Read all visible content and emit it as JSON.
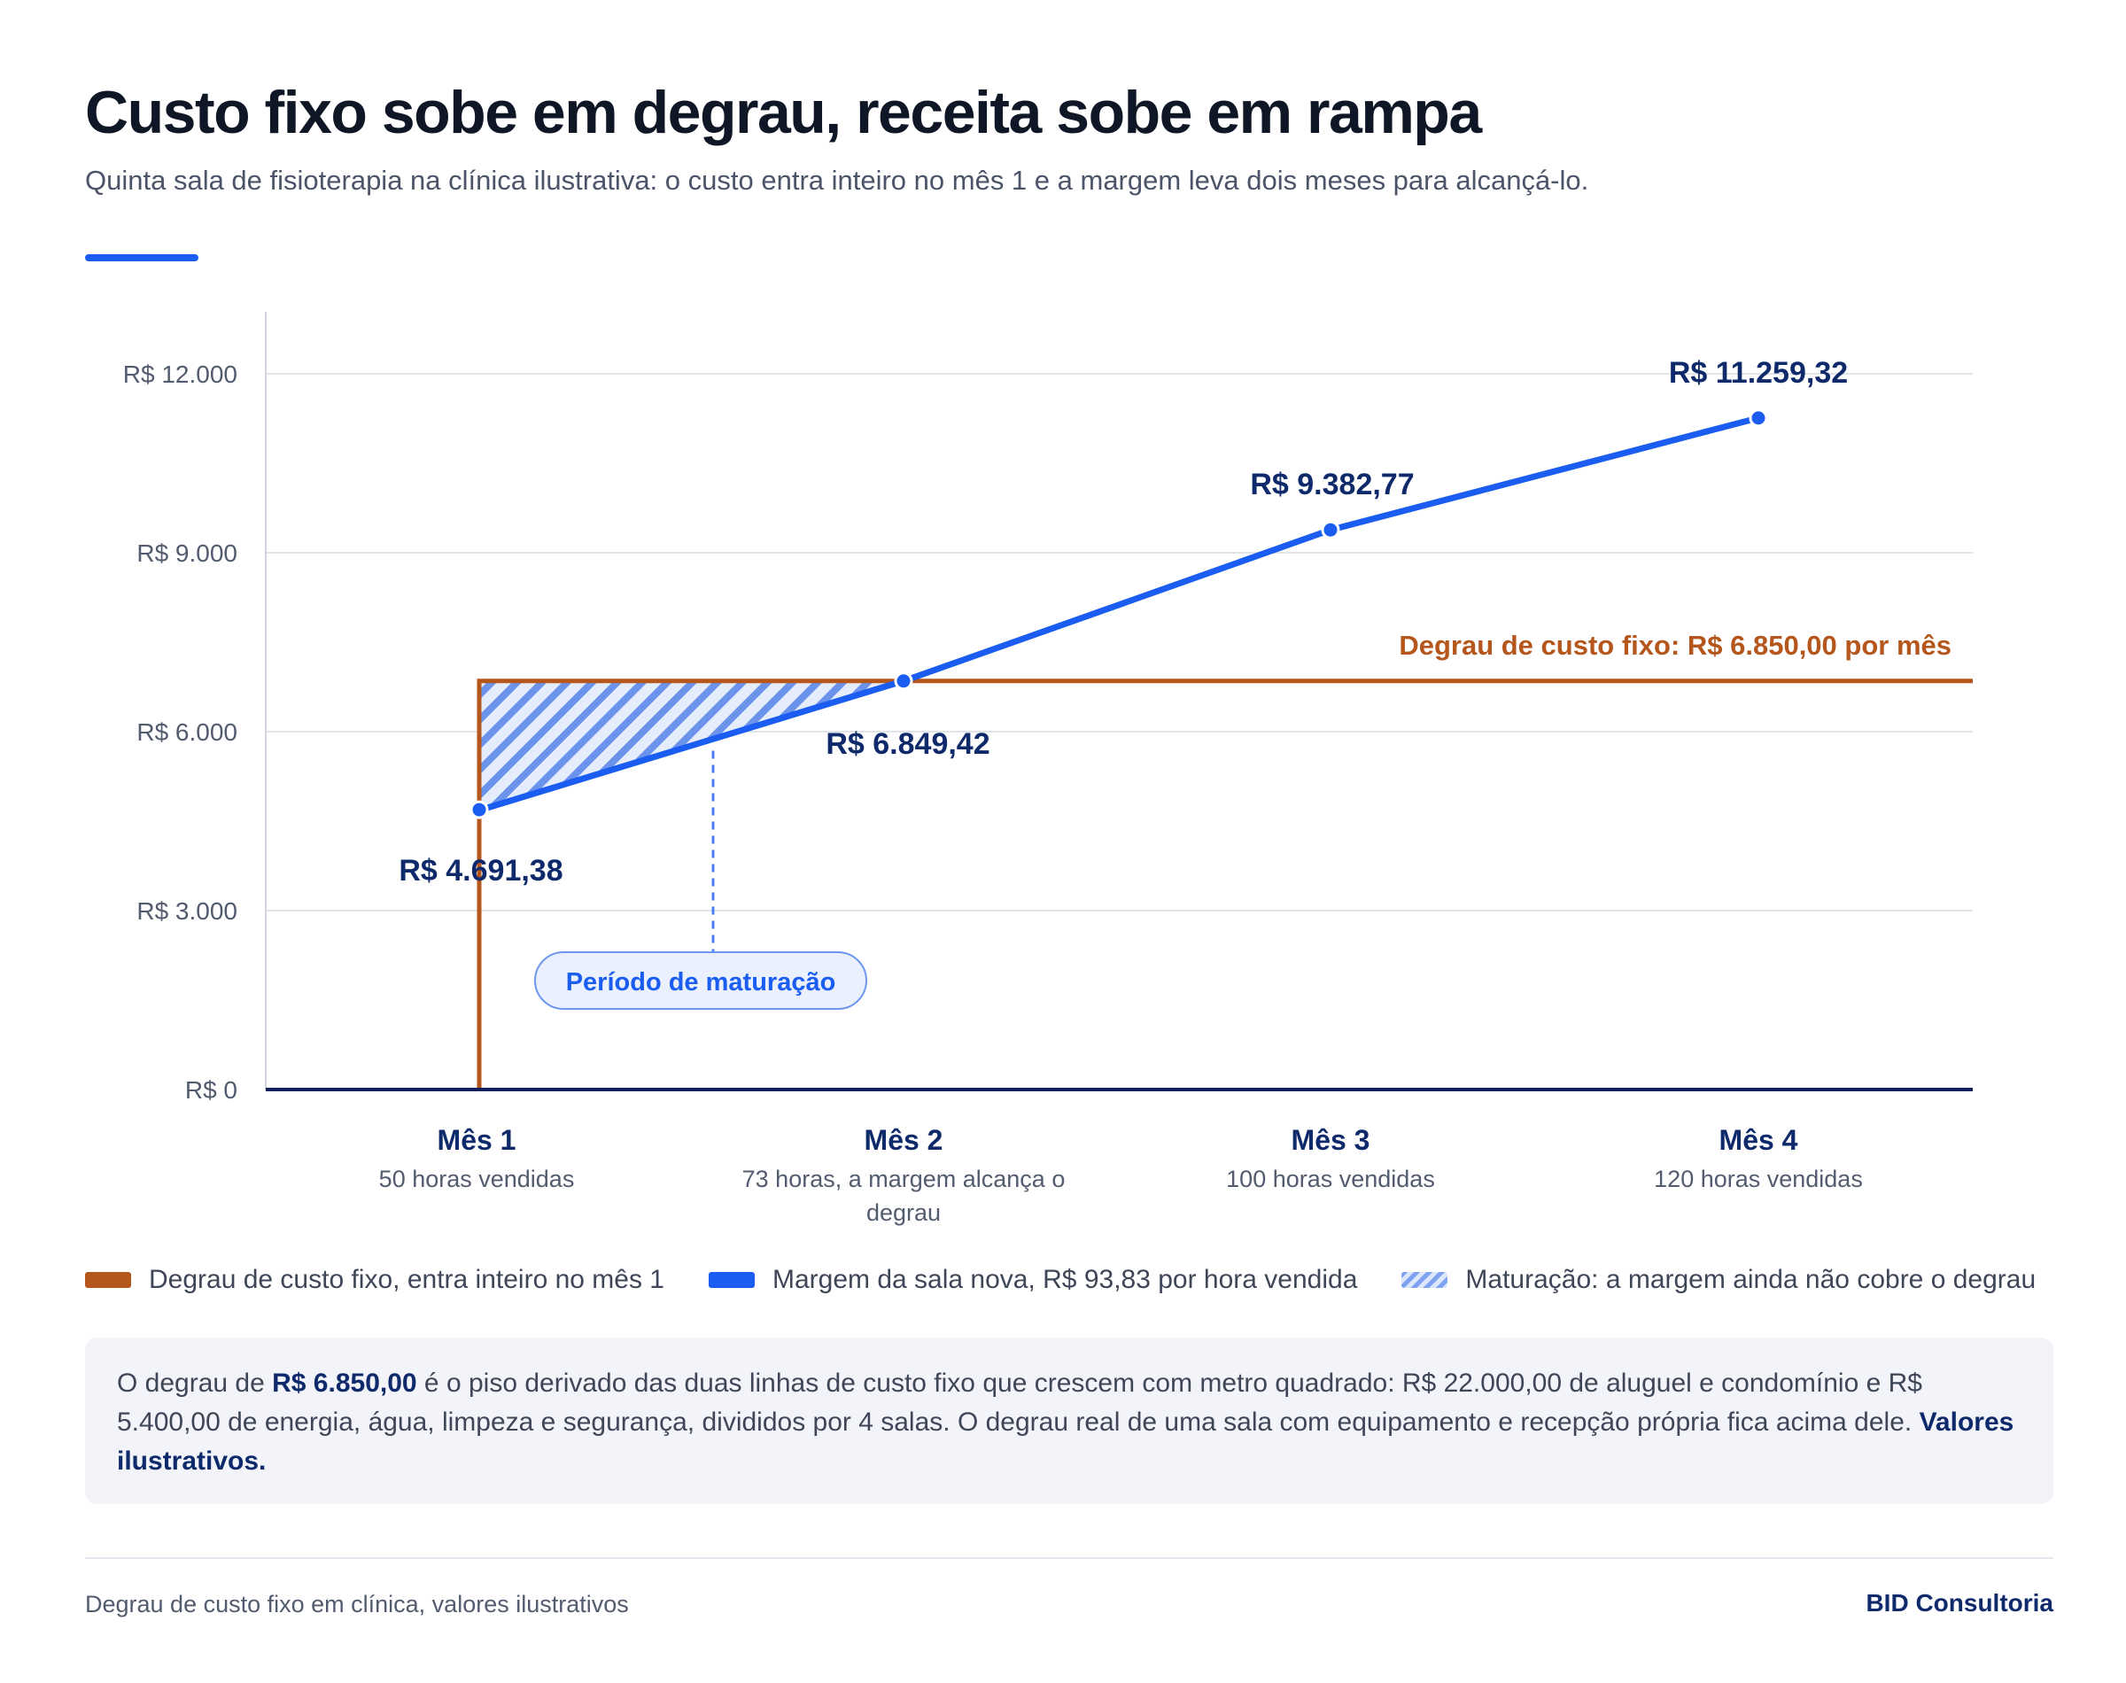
{
  "header": {
    "title": "Custo fixo sobe em degrau, receita sobe em rampa",
    "subtitle": "Quinta sala de fisioterapia na clínica ilustrativa: o custo entra inteiro no mês 1 e a margem leva dois meses para alcançá-lo."
  },
  "chart_data": {
    "type": "line",
    "categories": [
      "Mês 1",
      "Mês 2",
      "Mês 3",
      "Mês 4"
    ],
    "category_subtitles": [
      [
        "50 horas vendidas"
      ],
      [
        "73 horas, a margem alcança o",
        "degrau"
      ],
      [
        "100 horas vendidas"
      ],
      [
        "120 horas vendidas"
      ]
    ],
    "series": [
      {
        "values": [
          4691.38,
          6849.42,
          9382.77,
          11259.32
        ],
        "labels": [
          "R$ 4.691,38",
          "R$ 6.849,42",
          "R$ 9.382,77",
          "R$ 11.259,32"
        ],
        "color": "#1a5df0"
      }
    ],
    "fixed_cost_step": {
      "value": 6850.0,
      "starts_at": "Mês 1",
      "label": "Degrau de custo fixo: R$ 6.850,00 por mês",
      "color": "#b5571d"
    },
    "maturation": {
      "from": "Mês 1",
      "to": "Mês 2",
      "label": "Período de maturação"
    },
    "ylim": [
      0,
      12000
    ],
    "yticks": [
      0,
      3000,
      6000,
      9000,
      12000
    ],
    "ytick_labels": [
      "R$ 0",
      "R$ 3.000",
      "R$ 6.000",
      "R$ 9.000",
      "R$ 12.000"
    ],
    "grid": true
  },
  "legend": {
    "step": "Degrau de custo fixo, entra inteiro no mês 1",
    "margin": "Margem da sala nova, R$ 93,83 por hora vendida",
    "maturation": "Maturação: a margem ainda não cobre o degrau"
  },
  "note": {
    "part1": "O degrau de ",
    "highlight": "R$ 6.850,00",
    "part2": " é o piso derivado das duas linhas de custo fixo que crescem com metro quadrado: R$ 22.000,00 de aluguel e condomínio e R$ 5.400,00 de energia, água, limpeza e segurança, divididos por 4 salas. O degrau real de uma sala com equipamento e recepção própria fica acima dele. ",
    "bold_end": "Valores ilustrativos."
  },
  "footer": {
    "left": "Degrau de custo fixo em clínica, valores ilustrativos",
    "brand": "BID Consultoria"
  }
}
